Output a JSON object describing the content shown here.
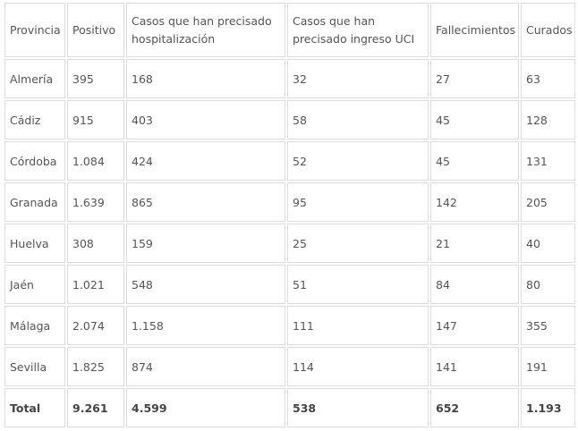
{
  "table": {
    "headers": [
      "Provincia",
      "Positivo",
      "Casos que han precisado hospitalización",
      "Casos que han precisado ingreso UCI",
      "Fallecimientos",
      "Curados"
    ],
    "rows": [
      [
        "Almería",
        "395",
        "168",
        "32",
        "27",
        "63"
      ],
      [
        "Cádiz",
        "915",
        "403",
        "58",
        "45",
        "128"
      ],
      [
        "Córdoba",
        "1.084",
        "424",
        "52",
        "45",
        "131"
      ],
      [
        "Granada",
        "1.639",
        "865",
        "95",
        "142",
        "205"
      ],
      [
        "Huelva",
        "308",
        "159",
        "25",
        "21",
        "40"
      ],
      [
        "Jaén",
        "1.021",
        "548",
        "51",
        "84",
        "80"
      ],
      [
        "Málaga",
        "2.074",
        "1.158",
        "111",
        "147",
        "355"
      ],
      [
        "Sevilla",
        "1.825",
        "874",
        "114",
        "141",
        "191"
      ]
    ],
    "total": [
      "Total",
      "9.261",
      "4.599",
      "538",
      "652",
      "1.193"
    ]
  }
}
